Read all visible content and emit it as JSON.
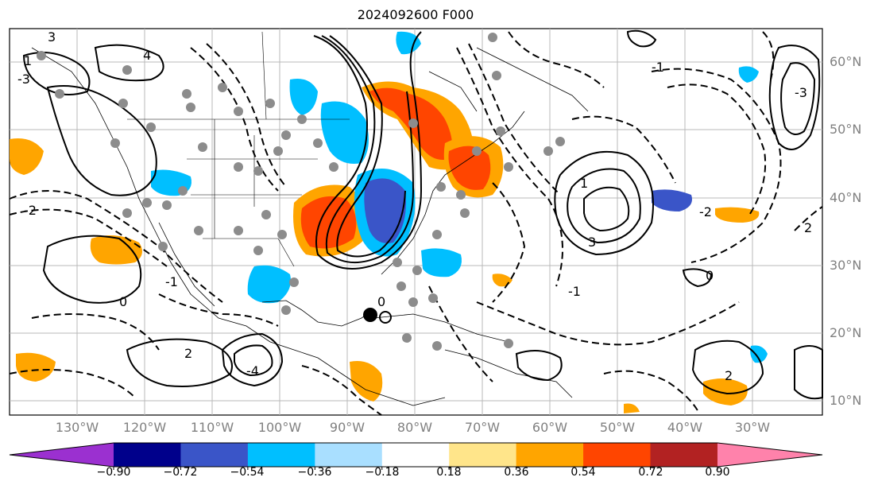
{
  "title": "2024092600 F000",
  "lat_labels": [
    "60°N",
    "50°N",
    "40°N",
    "30°N",
    "20°N",
    "10°N"
  ],
  "lon_labels": [
    "130°W",
    "120°W",
    "110°W",
    "100°W",
    "90°W",
    "80°W",
    "70°W",
    "60°W",
    "50°W",
    "40°W",
    "30°W"
  ],
  "colorbar": {
    "ticks": [
      "−0.90",
      "−0.72",
      "−0.54",
      "−0.36",
      "−0.18",
      "0.18",
      "0.36",
      "0.54",
      "0.72",
      "0.90"
    ],
    "colors": [
      "#9b30d0",
      "#00008b",
      "#3a55c8",
      "#00bfff",
      "#a9dfff",
      "#ffffff",
      "#ffe58a",
      "#ffa500",
      "#ff4500",
      "#b22222",
      "#ff82ab"
    ]
  },
  "map": {
    "contour_labels": [
      "3",
      "4",
      "1",
      "-2",
      "-1",
      "0",
      "2",
      "3",
      "1",
      "-1",
      "-2",
      "0",
      "-3",
      "2",
      "-4",
      "-3",
      "2",
      "-1",
      "0"
    ],
    "land_color": "#ffffff",
    "grid_color": "#b0b0b0",
    "reference_dot_color": "#8c8c8c",
    "storm_marker_color": "#000000"
  }
}
